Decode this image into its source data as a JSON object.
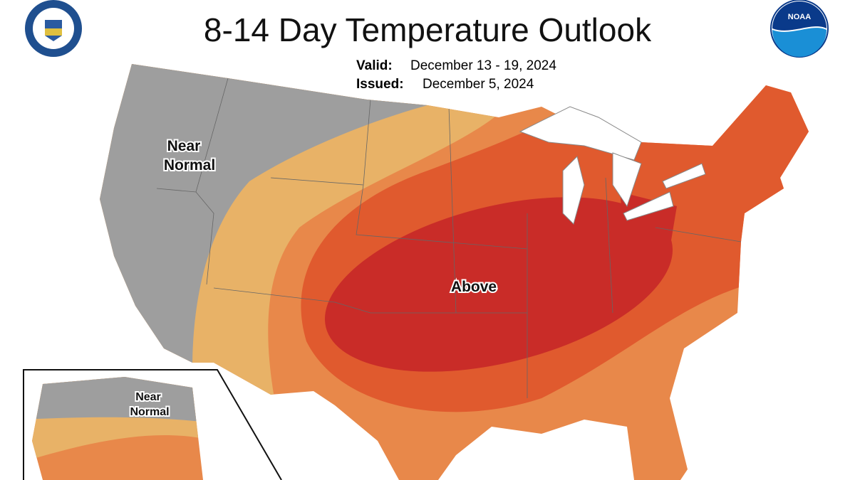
{
  "header": {
    "title": "8-14 Day Temperature Outlook",
    "valid_label": "Valid:",
    "valid": "December 13 - 19, 2024",
    "issued_label": "Issued:",
    "issued": "December 5, 2024",
    "noaa_logo": "NOAA"
  },
  "map": {
    "labels": [
      {
        "lines": [
          "Near",
          "Normal"
        ]
      },
      {
        "lines": [
          "Above"
        ]
      }
    ],
    "alaska": {
      "labels": [
        {
          "lines": [
            "Near",
            "Normal"
          ]
        }
      ]
    }
  }
}
